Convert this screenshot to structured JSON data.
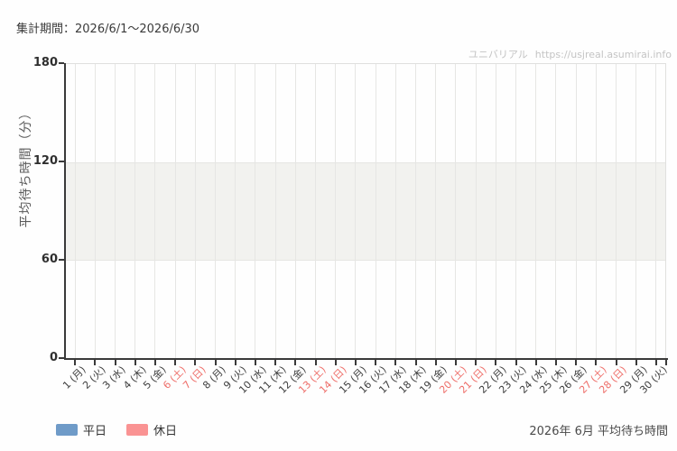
{
  "header": {
    "period_label": "集計期間：2026/6/1～2026/6/30"
  },
  "watermark": {
    "site_name": "ユニバリアル",
    "site_url": "https://usjreal.asumirai.info"
  },
  "legend": {
    "items": [
      {
        "label": "平日",
        "color": "#6f9bc8"
      },
      {
        "label": "休日",
        "color": "#fa9393"
      }
    ]
  },
  "footer": {
    "caption": "2026年 6月 平均待ち時間"
  },
  "chart_data": {
    "type": "bar",
    "title": "2026年 6月 平均待ち時間",
    "xlabel": "",
    "ylabel": "平均待ち時間（分）",
    "ylim": [
      0,
      180
    ],
    "yticks": [
      0,
      60,
      120,
      180
    ],
    "shaded_band_y": [
      60,
      120
    ],
    "grid": true,
    "legend_position": "bottom-left",
    "categories": [
      "1 (月)",
      "2 (火)",
      "3 (水)",
      "4 (木)",
      "5 (金)",
      "6 (土)",
      "7 (日)",
      "8 (月)",
      "9 (火)",
      "10 (水)",
      "11 (木)",
      "12 (金)",
      "13 (土)",
      "14 (日)",
      "15 (月)",
      "16 (火)",
      "17 (水)",
      "18 (木)",
      "19 (金)",
      "20 (土)",
      "21 (日)",
      "22 (月)",
      "23 (火)",
      "24 (水)",
      "25 (木)",
      "26 (金)",
      "27 (土)",
      "28 (日)",
      "29 (月)",
      "30 (火)"
    ],
    "weekend_days": [
      6,
      7,
      13,
      14,
      20,
      21,
      27,
      28
    ],
    "series": [
      {
        "name": "平日",
        "color": "#6f9bc8",
        "values": []
      },
      {
        "name": "休日",
        "color": "#fa9393",
        "values": []
      }
    ]
  },
  "colors": {
    "weekday_bar": "#6f9bc8",
    "holiday_bar": "#fa9393",
    "weekday_label": "#3c3c3c",
    "weekend_label": "#ee6d68",
    "band": "#f2f2ef",
    "gridline": "#e6e6e4",
    "axis": "#3a3a3a",
    "watermark": "#c4c4c4"
  }
}
